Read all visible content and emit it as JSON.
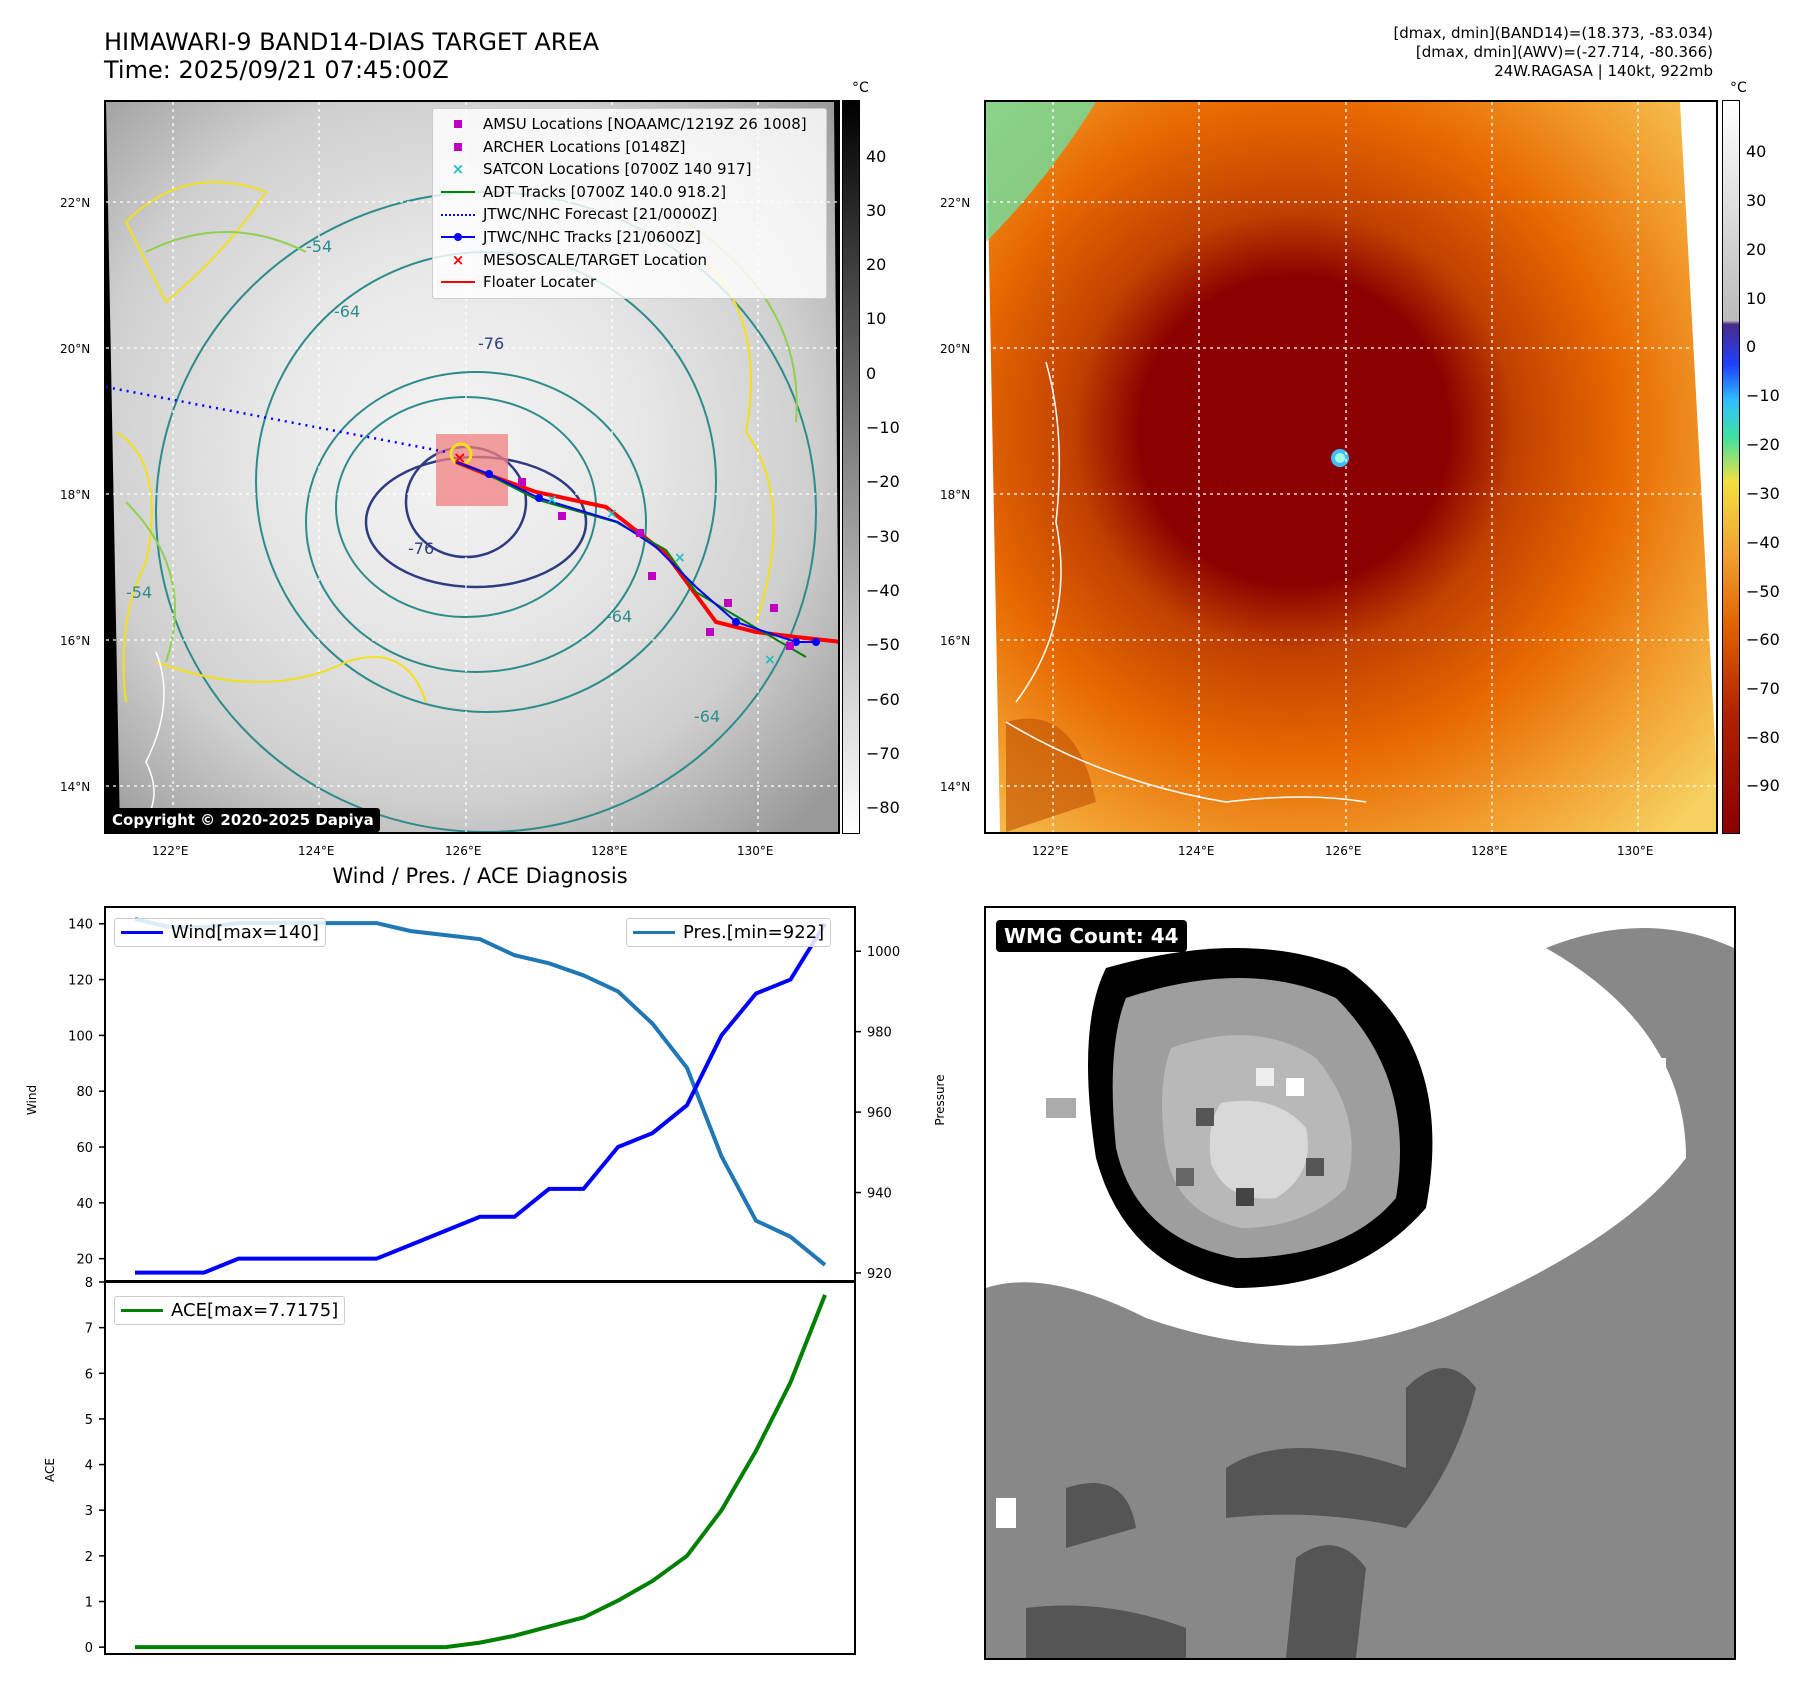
{
  "header": {
    "title_line1": "HIMAWARI-9 BAND14-DIAS TARGET AREA",
    "title_line2": "Time: 2025/09/21 07:45:00Z",
    "info_line1": "[dmax, dmin](BAND14)=(18.373, -83.034)",
    "info_line2": "[dmax, dmin](AWV)=(-27.714, -80.366)",
    "info_line3": "24W.RAGASA | 140kt, 922mb"
  },
  "map": {
    "lat_labels": [
      "22°N",
      "20°N",
      "18°N",
      "16°N",
      "14°N"
    ],
    "lon_labels": [
      "122°E",
      "124°E",
      "126°E",
      "128°E",
      "130°E"
    ],
    "contour_labels": [
      "-76",
      "-76",
      "-64",
      "-64",
      "-54",
      "-54",
      "-64"
    ],
    "copyright": "Copyright © 2020-2025 Dapiya",
    "colorbar_unit": "°C",
    "colorbar_ticks_gray": [
      "40",
      "30",
      "20",
      "10",
      "0",
      "−10",
      "−20",
      "−30",
      "−40",
      "−50",
      "−60",
      "−70",
      "−80"
    ],
    "colorbar_ticks_color": [
      "40",
      "30",
      "20",
      "10",
      "0",
      "−10",
      "−20",
      "−30",
      "−40",
      "−50",
      "−60",
      "−70",
      "−80",
      "−90"
    ],
    "legend": [
      {
        "label": "AMSU Locations [NOAAMC/1219Z 26 1008]",
        "marker": "square",
        "color": "#c000c0"
      },
      {
        "label": "ARCHER Locations [0148Z]",
        "marker": "square",
        "color": "#c000c0"
      },
      {
        "label": "SATCON Locations [0700Z 140 917]",
        "marker": "x",
        "color": "#20c0c0"
      },
      {
        "label": "ADT Tracks [0700Z 140.0 918.2]",
        "marker": "line",
        "color": "#008000"
      },
      {
        "label": "JTWC/NHC Forecast [21/0000Z]",
        "marker": "dotted",
        "color": "#0000ff"
      },
      {
        "label": "JTWC/NHC Tracks [21/0600Z]",
        "marker": "line-dot",
        "color": "#0000ff"
      },
      {
        "label": "MESOSCALE/TARGET Location",
        "marker": "x",
        "color": "#ff0000"
      },
      {
        "label": "Floater Locater",
        "marker": "line",
        "color": "#ff0000"
      }
    ]
  },
  "diagnosis": {
    "title": "Wind / Pres. / ACE Diagnosis",
    "wind_ylabel": "Wind",
    "pres_ylabel": "Pressure",
    "ace_ylabel": "ACE",
    "wind_legend": "Wind[max=140]",
    "pres_legend": "Pres.[min=922]",
    "ace_legend": "ACE[max=7.7175]"
  },
  "wmg": {
    "label": "WMG Count: 44"
  },
  "chart_data": [
    {
      "type": "line",
      "title": "Wind / Pres. / ACE Diagnosis",
      "ylabel": "Wind",
      "y2label": "Pressure",
      "ylim": [
        12,
        146
      ],
      "y2lim": [
        918,
        1011
      ],
      "yticks": [
        20,
        40,
        60,
        80,
        100,
        120,
        140
      ],
      "y2ticks": [
        920,
        940,
        960,
        980,
        1000
      ],
      "series": [
        {
          "name": "Wind[max=140]",
          "color": "#0000ff",
          "axis": "left",
          "values": [
            15,
            15,
            15,
            20,
            20,
            20,
            20,
            20,
            25,
            30,
            35,
            35,
            45,
            45,
            60,
            65,
            75,
            100,
            115,
            120,
            140
          ]
        },
        {
          "name": "Pres.[min=922]",
          "color": "#1f77b4",
          "axis": "right",
          "values": [
            1008,
            1006,
            1006,
            1007,
            1007,
            1007,
            1007,
            1007,
            1005,
            1004,
            1003,
            999,
            997,
            994,
            990,
            982,
            971,
            949,
            933,
            929,
            922
          ]
        }
      ]
    },
    {
      "type": "line",
      "ylabel": "ACE",
      "ylim": [
        -0.15,
        8
      ],
      "yticks": [
        0,
        1,
        2,
        3,
        4,
        5,
        6,
        7,
        8
      ],
      "series": [
        {
          "name": "ACE[max=7.7175]",
          "color": "#008000",
          "values": [
            0,
            0,
            0,
            0,
            0,
            0,
            0,
            0,
            0,
            0,
            0.1,
            0.25,
            0.45,
            0.65,
            1.02,
            1.45,
            2.0,
            3.0,
            4.3,
            5.8,
            7.7175
          ]
        }
      ]
    }
  ]
}
